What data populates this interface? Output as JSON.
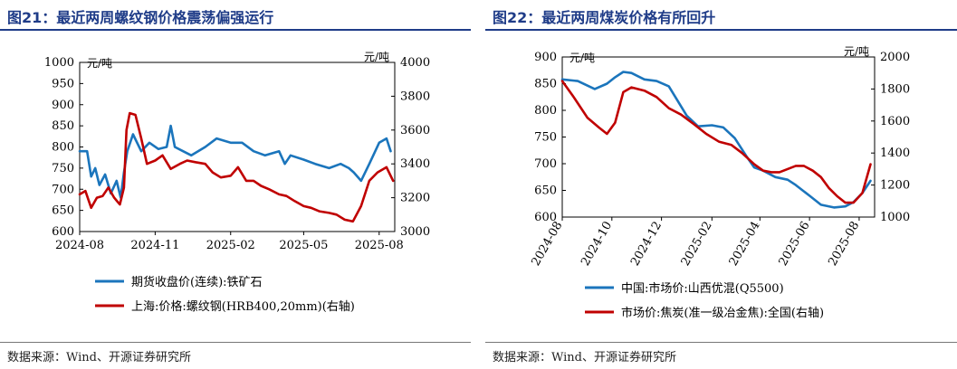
{
  "source_label": "数据来源：Wind、开源证券研究所",
  "colors": {
    "title": "#1f3c88",
    "blue": "#1b75bc",
    "red": "#c00000"
  },
  "chart_data": [
    {
      "type": "line",
      "title": "图21：最近两周螺纹钢价格震荡偏强运行",
      "left_axis_unit": "元/吨",
      "right_axis_unit": "元/吨",
      "x_ticks": [
        "2024-08",
        "2024-11",
        "2025-02",
        "2025-05",
        "2025-08"
      ],
      "x_range": [
        "2024-08-01",
        "2025-08-20"
      ],
      "ylim_left": [
        600,
        1000
      ],
      "yticks_left": [
        "1000",
        "950",
        "900",
        "850",
        "800",
        "750",
        "700",
        "650",
        "600"
      ],
      "ylim_right": [
        3000,
        4000
      ],
      "yticks_right": [
        "4000",
        "3800",
        "3600",
        "3400",
        "3200",
        "3000"
      ],
      "grid": false,
      "legend_position": "bottom",
      "series": [
        {
          "name": "期货收盘价(连续):铁矿石",
          "axis": "left",
          "color": "#1b75bc",
          "x": [
            "2024-08-01",
            "2024-08-10",
            "2024-08-15",
            "2024-08-20",
            "2024-08-25",
            "2024-09-01",
            "2024-09-08",
            "2024-09-15",
            "2024-09-20",
            "2024-09-24",
            "2024-09-28",
            "2024-10-05",
            "2024-10-15",
            "2024-10-25",
            "2024-11-05",
            "2024-11-15",
            "2024-11-20",
            "2024-11-25",
            "2024-12-05",
            "2024-12-15",
            "2025-01-01",
            "2025-01-15",
            "2025-02-01",
            "2025-02-15",
            "2025-03-01",
            "2025-03-15",
            "2025-04-01",
            "2025-04-08",
            "2025-04-15",
            "2025-05-01",
            "2025-05-15",
            "2025-06-01",
            "2025-06-15",
            "2025-06-25",
            "2025-07-01",
            "2025-07-10",
            "2025-07-20",
            "2025-08-01",
            "2025-08-10",
            "2025-08-15"
          ],
          "values": [
            790,
            790,
            730,
            750,
            710,
            735,
            690,
            720,
            680,
            740,
            790,
            830,
            790,
            810,
            795,
            800,
            850,
            800,
            790,
            780,
            800,
            820,
            810,
            810,
            790,
            780,
            790,
            760,
            780,
            770,
            760,
            750,
            760,
            750,
            740,
            720,
            760,
            810,
            820,
            790
          ]
        },
        {
          "name": "上海:价格:螺纹钢(HRB400,20mm)(右轴)",
          "axis": "right",
          "color": "#c00000",
          "x": [
            "2024-08-01",
            "2024-08-08",
            "2024-08-15",
            "2024-08-22",
            "2024-08-29",
            "2024-09-05",
            "2024-09-12",
            "2024-09-19",
            "2024-09-24",
            "2024-09-27",
            "2024-10-01",
            "2024-10-08",
            "2024-10-15",
            "2024-10-22",
            "2024-11-01",
            "2024-11-10",
            "2024-11-20",
            "2024-12-01",
            "2024-12-10",
            "2024-12-20",
            "2025-01-01",
            "2025-01-10",
            "2025-01-20",
            "2025-02-01",
            "2025-02-10",
            "2025-02-20",
            "2025-03-01",
            "2025-03-10",
            "2025-03-20",
            "2025-04-01",
            "2025-04-10",
            "2025-04-20",
            "2025-05-01",
            "2025-05-10",
            "2025-05-20",
            "2025-06-01",
            "2025-06-10",
            "2025-06-20",
            "2025-06-30",
            "2025-07-10",
            "2025-07-20",
            "2025-07-30",
            "2025-08-10",
            "2025-08-18"
          ],
          "values": [
            3220,
            3240,
            3140,
            3200,
            3210,
            3260,
            3200,
            3160,
            3260,
            3600,
            3700,
            3690,
            3550,
            3400,
            3420,
            3450,
            3370,
            3400,
            3420,
            3410,
            3400,
            3350,
            3320,
            3330,
            3380,
            3300,
            3300,
            3270,
            3250,
            3220,
            3210,
            3180,
            3150,
            3140,
            3120,
            3110,
            3100,
            3070,
            3060,
            3150,
            3300,
            3350,
            3380,
            3300
          ]
        }
      ]
    },
    {
      "type": "line",
      "title": "图22：最近两周煤炭价格有所回升",
      "left_axis_unit": "元/吨",
      "right_axis_unit": "元/吨",
      "x_ticks": [
        "2024-08",
        "2024-10",
        "2024-12",
        "2025-02",
        "2025-04",
        "2025-06",
        "2025-08"
      ],
      "x_range": [
        "2024-08-01",
        "2025-08-20"
      ],
      "ylim_left": [
        600,
        900
      ],
      "yticks_left": [
        "900",
        "850",
        "800",
        "750",
        "700",
        "650",
        "600"
      ],
      "ylim_right": [
        1000,
        2000
      ],
      "yticks_right": [
        "2000",
        "1800",
        "1600",
        "1400",
        "1200",
        "1000"
      ],
      "grid": false,
      "legend_position": "bottom",
      "series": [
        {
          "name": "中国:市场价:山西优混(Q5500)",
          "axis": "left",
          "color": "#1b75bc",
          "x": [
            "2024-08-01",
            "2024-08-20",
            "2024-09-10",
            "2024-09-25",
            "2024-10-05",
            "2024-10-15",
            "2024-10-25",
            "2024-11-10",
            "2024-11-25",
            "2024-12-10",
            "2024-12-20",
            "2025-01-01",
            "2025-01-15",
            "2025-02-01",
            "2025-02-15",
            "2025-03-01",
            "2025-03-15",
            "2025-03-25",
            "2025-04-05",
            "2025-04-20",
            "2025-05-05",
            "2025-05-15",
            "2025-06-01",
            "2025-06-15",
            "2025-07-01",
            "2025-07-15",
            "2025-07-25",
            "2025-08-05",
            "2025-08-15"
          ],
          "values": [
            858,
            855,
            840,
            850,
            862,
            872,
            870,
            858,
            855,
            845,
            820,
            790,
            770,
            772,
            768,
            748,
            715,
            693,
            687,
            675,
            670,
            660,
            640,
            623,
            618,
            620,
            628,
            645,
            668
          ]
        },
        {
          "name": "市场价:焦炭(准一级冶金焦):全国(右轴)",
          "axis": "right",
          "color": "#c00000",
          "x": [
            "2024-08-01",
            "2024-08-15",
            "2024-09-01",
            "2024-09-15",
            "2024-09-25",
            "2024-10-05",
            "2024-10-15",
            "2024-10-25",
            "2024-11-10",
            "2024-11-25",
            "2024-12-10",
            "2024-12-25",
            "2025-01-10",
            "2025-01-25",
            "2025-02-10",
            "2025-02-25",
            "2025-03-10",
            "2025-03-25",
            "2025-04-05",
            "2025-04-15",
            "2025-04-25",
            "2025-05-05",
            "2025-05-15",
            "2025-05-25",
            "2025-06-05",
            "2025-06-15",
            "2025-06-25",
            "2025-07-05",
            "2025-07-15",
            "2025-07-25",
            "2025-08-05",
            "2025-08-15"
          ],
          "values": [
            1850,
            1750,
            1620,
            1560,
            1520,
            1590,
            1780,
            1810,
            1790,
            1750,
            1680,
            1640,
            1580,
            1520,
            1470,
            1450,
            1400,
            1330,
            1290,
            1280,
            1280,
            1300,
            1320,
            1320,
            1290,
            1250,
            1180,
            1130,
            1090,
            1090,
            1150,
            1330
          ]
        }
      ]
    }
  ]
}
